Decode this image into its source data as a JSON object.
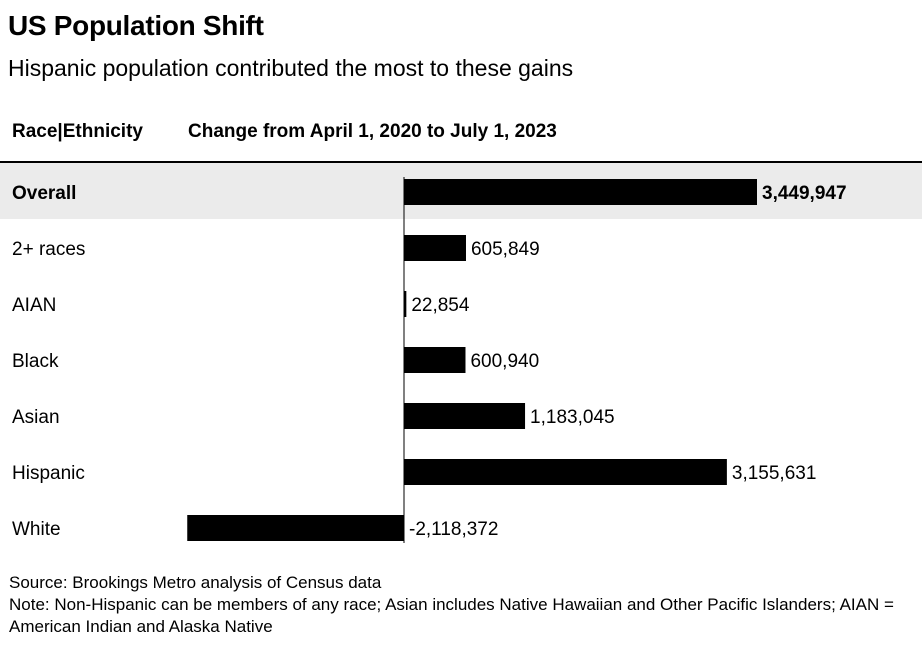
{
  "header": {
    "title": "US Population Shift",
    "subtitle": "Hispanic population contributed the most to these gains",
    "col_label": "Race|Ethnicity",
    "col_value": "Change from April 1, 2020 to July 1, 2023"
  },
  "chart_data": {
    "type": "bar",
    "orientation": "horizontal",
    "title": "US Population Shift",
    "subtitle": "Hispanic population contributed the most to these gains",
    "categories": [
      "Overall",
      "2+ races",
      "AIAN",
      "Black",
      "Asian",
      "Hispanic",
      "White"
    ],
    "values": [
      3449947,
      605849,
      22854,
      600940,
      1183045,
      3155631,
      -2118372
    ],
    "labels": [
      "3,449,947",
      "605,849",
      "22,854",
      "600,940",
      "1,183,045",
      "3,155,631",
      "-2,118,372"
    ],
    "highlight": "Overall",
    "bar_color": "#000000",
    "highlight_bg": "#ebebeb",
    "xlim": [
      -2118372,
      3449947
    ]
  },
  "footer": {
    "source": "Source: Brookings Metro analysis of Census data",
    "note": "Note: Non-Hispanic can be members of any race; Asian includes Native Hawaiian and Other Pacific Islanders; AIAN = American Indian and Alaska Native"
  }
}
